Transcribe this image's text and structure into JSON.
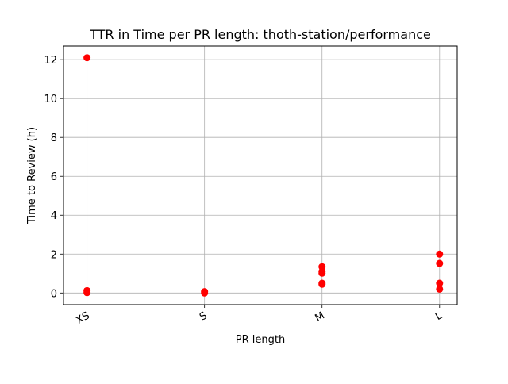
{
  "chart_data": {
    "type": "scatter",
    "title": "TTR in Time per PR length: thoth-station/performance",
    "xlabel": "PR length",
    "ylabel": "Time to Review (h)",
    "categories": [
      "XS",
      "S",
      "M",
      "L"
    ],
    "ylim": [
      -0.6,
      12.7
    ],
    "xlim": [
      -0.2,
      3.15
    ],
    "yticks": [
      0,
      2,
      4,
      6,
      8,
      10,
      12
    ],
    "grid": true,
    "marker_color": "#ff0000",
    "points": [
      {
        "x": "XS",
        "y": 12.1
      },
      {
        "x": "XS",
        "y": 0.12
      },
      {
        "x": "XS",
        "y": 0.02
      },
      {
        "x": "S",
        "y": 0.07
      },
      {
        "x": "S",
        "y": 0.0
      },
      {
        "x": "M",
        "y": 1.35
      },
      {
        "x": "M",
        "y": 1.1
      },
      {
        "x": "M",
        "y": 1.02
      },
      {
        "x": "M",
        "y": 0.5
      },
      {
        "x": "M",
        "y": 0.45
      },
      {
        "x": "L",
        "y": 2.0
      },
      {
        "x": "L",
        "y": 1.52
      },
      {
        "x": "L",
        "y": 0.5
      },
      {
        "x": "L",
        "y": 0.2
      }
    ]
  }
}
